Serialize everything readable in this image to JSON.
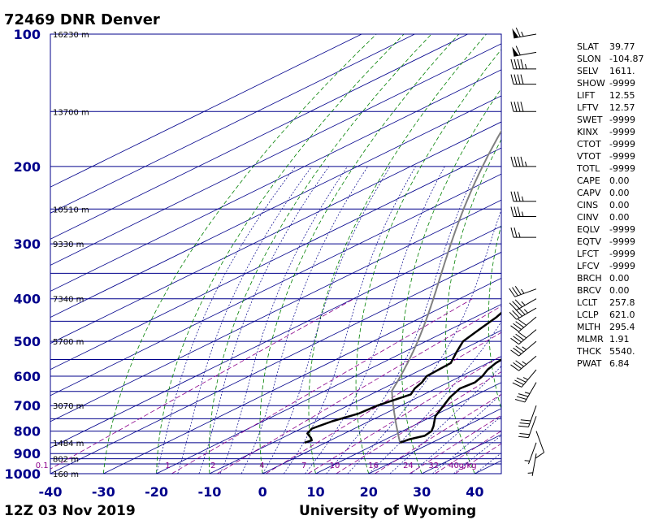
{
  "header": {
    "title": "72469 DNR Denver",
    "date": "12Z 03 Nov 2019",
    "source": "University of Wyoming"
  },
  "colors": {
    "isobar": "#00008b",
    "isotherm": "#00008b",
    "dry_adiabat": "#008000",
    "moist_adiabat": "#00008b",
    "mixing_ratio": "#8b008b",
    "profile": "#000000",
    "parcel": "#808080"
  },
  "chart_data": {
    "type": "line",
    "chart_kind": "skew-T log-P sounding",
    "xlabel": "",
    "ylabel": "",
    "x_range": [
      -40,
      45
    ],
    "p_range_hPa": [
      1000,
      100
    ],
    "x_ticks": [
      "-40",
      "-30",
      "-20",
      "-10",
      "0",
      "10",
      "20",
      "30",
      "40"
    ],
    "x_tick_values": [
      -40,
      -30,
      -20,
      -10,
      0,
      10,
      20,
      30,
      40
    ],
    "p_ticks": [
      "100",
      "200",
      "300",
      "400",
      "500",
      "600",
      "700",
      "800",
      "900",
      "1000"
    ],
    "p_tick_values": [
      100,
      200,
      300,
      400,
      500,
      600,
      700,
      800,
      900,
      1000
    ],
    "isobars_hPa": [
      100,
      150,
      200,
      250,
      300,
      350,
      400,
      450,
      500,
      550,
      600,
      650,
      700,
      750,
      800,
      850,
      900,
      925,
      950,
      1000
    ],
    "height_labels": [
      {
        "p": 100,
        "text": "16230 m"
      },
      {
        "p": 150,
        "text": "13700 m"
      },
      {
        "p": 250,
        "text": "10510 m"
      },
      {
        "p": 300,
        "text": "9330 m"
      },
      {
        "p": 400,
        "text": "7340 m"
      },
      {
        "p": 500,
        "text": "5700 m"
      },
      {
        "p": 700,
        "text": "3070 m"
      },
      {
        "p": 850,
        "text": "1484 m"
      },
      {
        "p": 925,
        "text": "802 m"
      },
      {
        "p": 1000,
        "text": "160 m"
      }
    ],
    "mixing_ratio_lines": [
      "0.1",
      "1",
      "2",
      "4",
      "7",
      "10",
      "16",
      "24",
      "32",
      "40g/kg"
    ],
    "mixing_ratio_values": [
      0.1,
      1,
      2,
      4,
      7,
      10,
      16,
      24,
      32,
      40
    ],
    "series": [
      {
        "name": "",
        "role": "temperature",
        "points": [
          [
            850,
            14
          ],
          [
            835,
            14.5
          ],
          [
            820,
            16
          ],
          [
            800,
            15.5
          ],
          [
            780,
            14
          ],
          [
            740,
            10.5
          ],
          [
            700,
            8
          ],
          [
            670,
            6
          ],
          [
            640,
            4.5
          ],
          [
            620,
            5
          ],
          [
            600,
            4
          ],
          [
            580,
            2.5
          ],
          [
            560,
            1.5
          ],
          [
            540,
            1
          ],
          [
            520,
            0.5
          ],
          [
            500,
            -1.5
          ],
          [
            470,
            -4
          ],
          [
            440,
            -6.5
          ],
          [
            410,
            -8.5
          ],
          [
            390,
            -10.5
          ],
          [
            370,
            -12
          ],
          [
            350,
            -14
          ],
          [
            330,
            -16
          ],
          [
            310,
            -18
          ],
          [
            290,
            -20.5
          ],
          [
            275,
            -22.5
          ],
          [
            260,
            -24.5
          ],
          [
            250,
            -26
          ],
          [
            230,
            -28
          ],
          [
            200,
            -32
          ],
          [
            175,
            -37
          ],
          [
            160,
            -41
          ],
          [
            150,
            -45
          ],
          [
            140,
            -48
          ],
          [
            135,
            -49
          ],
          [
            125,
            -49
          ],
          [
            115,
            -50
          ],
          [
            105,
            -52
          ],
          [
            100,
            -53.5
          ]
        ]
      },
      {
        "name": "",
        "role": "dewpoint",
        "points": [
          [
            850,
            -4
          ],
          [
            840,
            -3.5
          ],
          [
            830,
            -4.5
          ],
          [
            810,
            -7
          ],
          [
            790,
            -8
          ],
          [
            760,
            -7
          ],
          [
            730,
            -5
          ],
          [
            700,
            -4.5
          ],
          [
            660,
            -2.5
          ],
          [
            640,
            -4
          ],
          [
            620,
            -5
          ],
          [
            600,
            -6.5
          ],
          [
            560,
            -7
          ],
          [
            530,
            -10
          ],
          [
            500,
            -13
          ],
          [
            470,
            -14.5
          ],
          [
            440,
            -16
          ],
          [
            420,
            -17.5
          ],
          [
            400,
            -19
          ],
          [
            380,
            -17.5
          ],
          [
            365,
            -20
          ],
          [
            345,
            -24
          ],
          [
            330,
            -26
          ],
          [
            310,
            -27
          ],
          [
            290,
            -28.5
          ],
          [
            270,
            -30
          ],
          [
            250,
            -33
          ],
          [
            225,
            -38
          ],
          [
            200,
            -44
          ],
          [
            175,
            -51
          ],
          [
            160,
            -56
          ],
          [
            150,
            -59
          ],
          [
            140,
            -60
          ],
          [
            130,
            -62
          ],
          [
            120,
            -64
          ],
          [
            110,
            -68
          ],
          [
            100,
            -74
          ]
        ]
      }
    ]
  },
  "wind_barbs": [
    {
      "p": 100,
      "dir": 260,
      "kt": 65
    },
    {
      "p": 110,
      "dir": 260,
      "kt": 60
    },
    {
      "p": 120,
      "dir": 270,
      "kt": 45
    },
    {
      "p": 130,
      "dir": 270,
      "kt": 40
    },
    {
      "p": 150,
      "dir": 270,
      "kt": 40
    },
    {
      "p": 200,
      "dir": 270,
      "kt": 45
    },
    {
      "p": 240,
      "dir": 270,
      "kt": 35
    },
    {
      "p": 260,
      "dir": 270,
      "kt": 35
    },
    {
      "p": 290,
      "dir": 270,
      "kt": 25
    },
    {
      "p": 380,
      "dir": 250,
      "kt": 35
    },
    {
      "p": 400,
      "dir": 240,
      "kt": 35
    },
    {
      "p": 420,
      "dir": 240,
      "kt": 45
    },
    {
      "p": 440,
      "dir": 230,
      "kt": 40
    },
    {
      "p": 470,
      "dir": 230,
      "kt": 40
    },
    {
      "p": 500,
      "dir": 230,
      "kt": 35
    },
    {
      "p": 540,
      "dir": 230,
      "kt": 35
    },
    {
      "p": 580,
      "dir": 220,
      "kt": 35
    },
    {
      "p": 620,
      "dir": 210,
      "kt": 35
    },
    {
      "p": 700,
      "dir": 200,
      "kt": 30
    },
    {
      "p": 740,
      "dir": 200,
      "kt": 20
    },
    {
      "p": 800,
      "dir": 160,
      "kt": 10
    },
    {
      "p": 850,
      "dir": 200,
      "kt": 5
    },
    {
      "p": 900,
      "dir": 190,
      "kt": 5
    }
  ],
  "stats": [
    {
      "key": "SLAT",
      "value": "39.77"
    },
    {
      "key": "SLON",
      "value": "-104.87"
    },
    {
      "key": "SELV",
      "value": "1611."
    },
    {
      "key": "SHOW",
      "value": "-9999"
    },
    {
      "key": "LIFT",
      "value": "12.55"
    },
    {
      "key": "LFTV",
      "value": "12.57"
    },
    {
      "key": "SWET",
      "value": "-9999"
    },
    {
      "key": "KINX",
      "value": "-9999"
    },
    {
      "key": "CTOT",
      "value": "-9999"
    },
    {
      "key": "VTOT",
      "value": "-9999"
    },
    {
      "key": "TOTL",
      "value": "-9999"
    },
    {
      "key": "CAPE",
      "value": "0.00"
    },
    {
      "key": "CAPV",
      "value": "0.00"
    },
    {
      "key": "CINS",
      "value": "0.00"
    },
    {
      "key": "CINV",
      "value": "0.00"
    },
    {
      "key": "EQLV",
      "value": "-9999"
    },
    {
      "key": "EQTV",
      "value": "-9999"
    },
    {
      "key": "LFCT",
      "value": "-9999"
    },
    {
      "key": "LFCV",
      "value": "-9999"
    },
    {
      "key": "BRCH",
      "value": "0.00"
    },
    {
      "key": "BRCV",
      "value": "0.00"
    },
    {
      "key": "LCLT",
      "value": "257.8"
    },
    {
      "key": "LCLP",
      "value": "621.0"
    },
    {
      "key": "MLTH",
      "value": "295.4"
    },
    {
      "key": "MLMR",
      "value": "1.91"
    },
    {
      "key": "THCK",
      "value": "5540."
    },
    {
      "key": "PWAT",
      "value": "6.84"
    }
  ]
}
